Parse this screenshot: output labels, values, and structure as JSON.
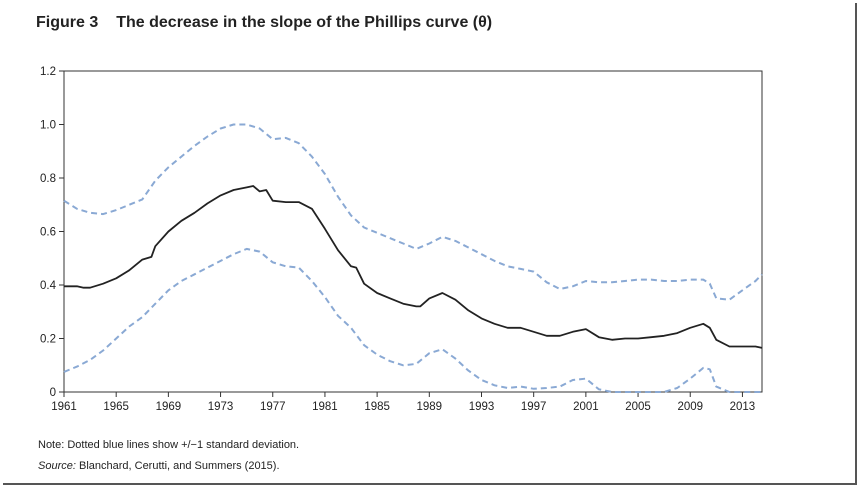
{
  "figure": {
    "number": "Figure 3",
    "title": "The decrease in the slope of the Phillips curve (θ)",
    "note": "Note: Dotted  blue lines show +/−1 standard deviation.",
    "source_label": "Source:",
    "source_text": " Blanchard, Cerutti, and Summers (2015)."
  },
  "chart_data": {
    "type": "line",
    "title": "The decrease in the slope of the Phillips curve (θ)",
    "xlabel": "",
    "ylabel": "",
    "xlim": [
      1961,
      2014.5
    ],
    "ylim": [
      0,
      1.2
    ],
    "grid": false,
    "legend": "none",
    "x_ticks": [
      1961,
      1965,
      1969,
      1973,
      1977,
      1981,
      1985,
      1989,
      1993,
      1997,
      2001,
      2005,
      2009,
      2013
    ],
    "y_ticks": [
      0,
      0.2,
      0.4,
      0.6,
      0.8,
      1.0,
      1.2
    ],
    "y_tick_labels": [
      "0",
      "0.2",
      "0.4",
      "0.6",
      "0.8",
      "1.0",
      "1.2"
    ],
    "colors": {
      "estimate": "#222222",
      "band": "#8aa9d4"
    },
    "series": [
      {
        "style": "solid",
        "color": "#222222",
        "points": [
          [
            1961,
            0.395
          ],
          [
            1962,
            0.395
          ],
          [
            1962.5,
            0.39
          ],
          [
            1963,
            0.39
          ],
          [
            1964,
            0.405
          ],
          [
            1965,
            0.425
          ],
          [
            1966,
            0.455
          ],
          [
            1967,
            0.495
          ],
          [
            1967.7,
            0.505
          ],
          [
            1968,
            0.545
          ],
          [
            1969,
            0.6
          ],
          [
            1970,
            0.64
          ],
          [
            1971,
            0.67
          ],
          [
            1972,
            0.705
          ],
          [
            1973,
            0.735
          ],
          [
            1974,
            0.755
          ],
          [
            1975,
            0.765
          ],
          [
            1975.5,
            0.77
          ],
          [
            1976,
            0.75
          ],
          [
            1976.5,
            0.755
          ],
          [
            1977,
            0.715
          ],
          [
            1978,
            0.71
          ],
          [
            1979,
            0.71
          ],
          [
            1980,
            0.685
          ],
          [
            1981,
            0.61
          ],
          [
            1982,
            0.53
          ],
          [
            1983,
            0.47
          ],
          [
            1983.4,
            0.465
          ],
          [
            1984,
            0.405
          ],
          [
            1985,
            0.37
          ],
          [
            1986,
            0.35
          ],
          [
            1987,
            0.33
          ],
          [
            1988,
            0.32
          ],
          [
            1988.3,
            0.32
          ],
          [
            1989,
            0.35
          ],
          [
            1990,
            0.37
          ],
          [
            1991,
            0.345
          ],
          [
            1992,
            0.305
          ],
          [
            1993,
            0.275
          ],
          [
            1994,
            0.255
          ],
          [
            1995,
            0.24
          ],
          [
            1996,
            0.24
          ],
          [
            1997,
            0.225
          ],
          [
            1998,
            0.21
          ],
          [
            1999,
            0.21
          ],
          [
            2000,
            0.225
          ],
          [
            2001,
            0.235
          ],
          [
            2002,
            0.205
          ],
          [
            2003,
            0.195
          ],
          [
            2004,
            0.2
          ],
          [
            2005,
            0.2
          ],
          [
            2006,
            0.205
          ],
          [
            2007,
            0.21
          ],
          [
            2008,
            0.22
          ],
          [
            2009,
            0.24
          ],
          [
            2010,
            0.255
          ],
          [
            2010.5,
            0.24
          ],
          [
            2011,
            0.195
          ],
          [
            2012,
            0.17
          ],
          [
            2013,
            0.17
          ],
          [
            2014,
            0.17
          ],
          [
            2014.5,
            0.165
          ]
        ]
      },
      {
        "style": "dashed",
        "color": "#8aa9d4",
        "points": [
          [
            1961,
            0.715
          ],
          [
            1962,
            0.685
          ],
          [
            1963,
            0.67
          ],
          [
            1964,
            0.665
          ],
          [
            1965,
            0.68
          ],
          [
            1966,
            0.7
          ],
          [
            1967,
            0.72
          ],
          [
            1968,
            0.79
          ],
          [
            1969,
            0.84
          ],
          [
            1970,
            0.88
          ],
          [
            1971,
            0.92
          ],
          [
            1972,
            0.955
          ],
          [
            1973,
            0.985
          ],
          [
            1974,
            1.0
          ],
          [
            1975,
            1.0
          ],
          [
            1976,
            0.985
          ],
          [
            1977,
            0.945
          ],
          [
            1978,
            0.95
          ],
          [
            1979,
            0.93
          ],
          [
            1980,
            0.88
          ],
          [
            1981,
            0.815
          ],
          [
            1982,
            0.73
          ],
          [
            1983,
            0.66
          ],
          [
            1984,
            0.615
          ],
          [
            1985,
            0.595
          ],
          [
            1986,
            0.575
          ],
          [
            1987,
            0.555
          ],
          [
            1988,
            0.535
          ],
          [
            1989,
            0.555
          ],
          [
            1990,
            0.58
          ],
          [
            1991,
            0.565
          ],
          [
            1992,
            0.54
          ],
          [
            1993,
            0.515
          ],
          [
            1994,
            0.49
          ],
          [
            1995,
            0.47
          ],
          [
            1996,
            0.46
          ],
          [
            1997,
            0.45
          ],
          [
            1998,
            0.41
          ],
          [
            1999,
            0.385
          ],
          [
            2000,
            0.395
          ],
          [
            2001,
            0.415
          ],
          [
            2002,
            0.41
          ],
          [
            2003,
            0.41
          ],
          [
            2004,
            0.415
          ],
          [
            2005,
            0.42
          ],
          [
            2006,
            0.42
          ],
          [
            2007,
            0.415
          ],
          [
            2008,
            0.415
          ],
          [
            2009,
            0.42
          ],
          [
            2010,
            0.42
          ],
          [
            2010.5,
            0.405
          ],
          [
            2011,
            0.35
          ],
          [
            2012,
            0.345
          ],
          [
            2013,
            0.38
          ],
          [
            2014,
            0.415
          ],
          [
            2014.5,
            0.44
          ]
        ]
      },
      {
        "style": "dashed",
        "color": "#8aa9d4",
        "points": [
          [
            1961,
            0.075
          ],
          [
            1962,
            0.095
          ],
          [
            1963,
            0.12
          ],
          [
            1964,
            0.155
          ],
          [
            1965,
            0.2
          ],
          [
            1966,
            0.245
          ],
          [
            1967,
            0.28
          ],
          [
            1968,
            0.33
          ],
          [
            1969,
            0.38
          ],
          [
            1970,
            0.415
          ],
          [
            1971,
            0.44
          ],
          [
            1972,
            0.465
          ],
          [
            1973,
            0.49
          ],
          [
            1974,
            0.515
          ],
          [
            1975,
            0.535
          ],
          [
            1976,
            0.525
          ],
          [
            1977,
            0.485
          ],
          [
            1978,
            0.47
          ],
          [
            1979,
            0.465
          ],
          [
            1980,
            0.415
          ],
          [
            1981,
            0.355
          ],
          [
            1982,
            0.285
          ],
          [
            1983,
            0.24
          ],
          [
            1984,
            0.175
          ],
          [
            1985,
            0.14
          ],
          [
            1986,
            0.115
          ],
          [
            1987,
            0.1
          ],
          [
            1988,
            0.105
          ],
          [
            1989,
            0.145
          ],
          [
            1990,
            0.16
          ],
          [
            1991,
            0.125
          ],
          [
            1992,
            0.08
          ],
          [
            1993,
            0.045
          ],
          [
            1994,
            0.025
          ],
          [
            1995,
            0.015
          ],
          [
            1996,
            0.02
          ],
          [
            1997,
            0.012
          ],
          [
            1998,
            0.015
          ],
          [
            1999,
            0.02
          ],
          [
            2000,
            0.045
          ],
          [
            2001,
            0.05
          ],
          [
            2002,
            0.01
          ],
          [
            2003,
            0.0
          ],
          [
            2004,
            0.0
          ],
          [
            2005,
            0.0
          ],
          [
            2006,
            0.0
          ],
          [
            2007,
            0.0
          ],
          [
            2008,
            0.015
          ],
          [
            2009,
            0.05
          ],
          [
            2010,
            0.09
          ],
          [
            2010.5,
            0.085
          ],
          [
            2011,
            0.02
          ],
          [
            2012,
            0.0
          ],
          [
            2013,
            0.0
          ],
          [
            2014,
            0.0
          ],
          [
            2014.5,
            0.0
          ]
        ]
      }
    ]
  }
}
